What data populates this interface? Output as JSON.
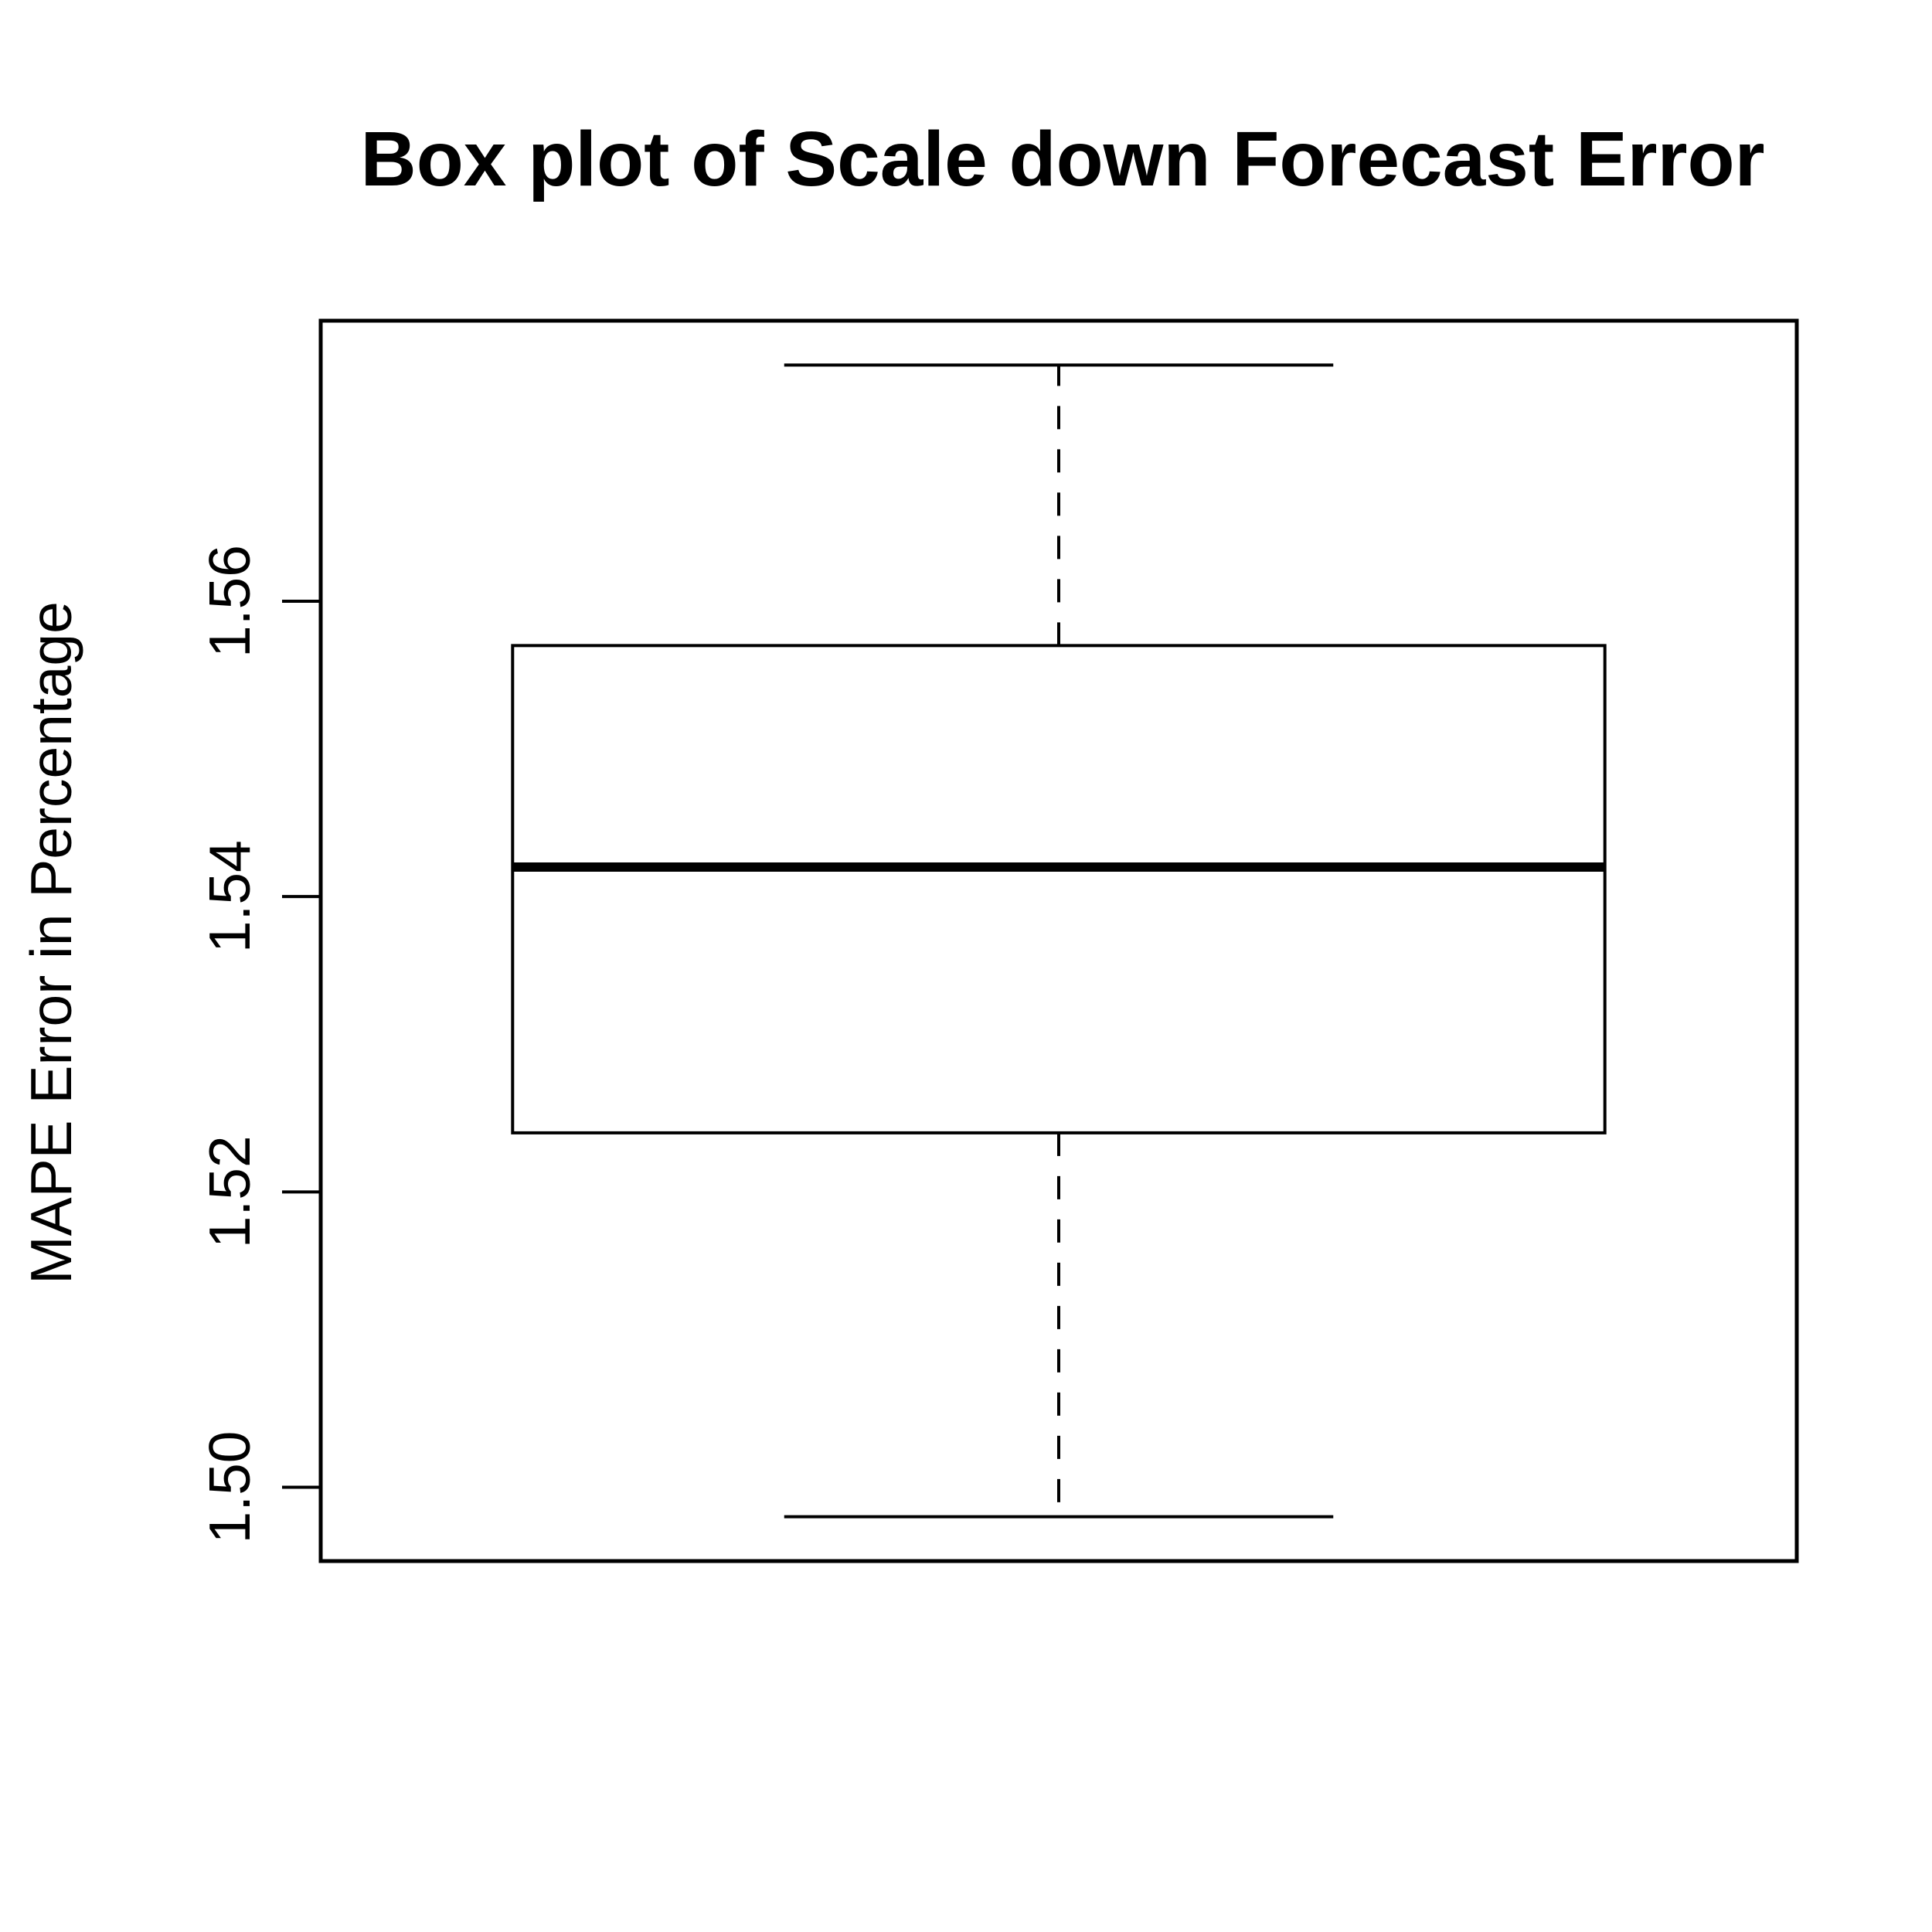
{
  "chart_data": {
    "type": "box",
    "title": "Box plot of Scale down Forecast Error",
    "xlabel": "",
    "ylabel": "MAPE Error in Percentage",
    "ylim": [
      1.495,
      1.579
    ],
    "yticks": [
      1.5,
      1.52,
      1.54,
      1.56
    ],
    "ytick_labels": [
      "1.50",
      "1.52",
      "1.54",
      "1.56"
    ],
    "grid": false,
    "boxes": [
      {
        "min": 1.498,
        "q1": 1.524,
        "median": 1.542,
        "q3": 1.557,
        "max": 1.576
      }
    ]
  }
}
